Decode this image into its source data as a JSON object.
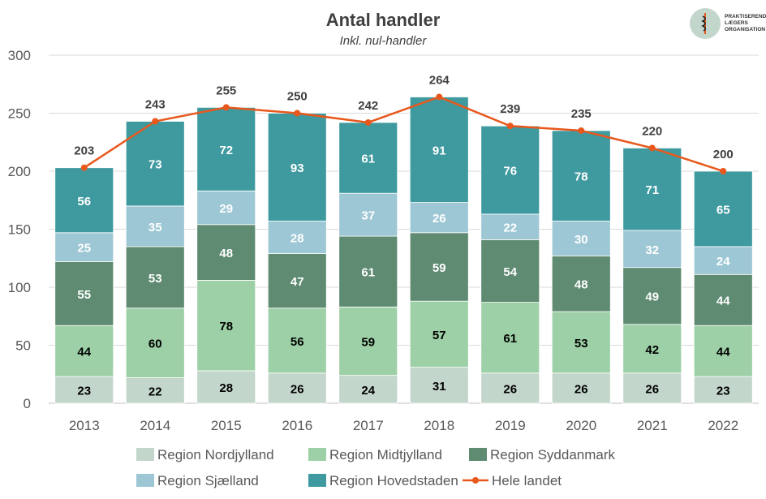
{
  "chart_data": {
    "type": "stacked-bar+line",
    "title": "Antal handler",
    "subtitle": "Inkl. nul-handler",
    "categories": [
      "2013",
      "2014",
      "2015",
      "2016",
      "2017",
      "2018",
      "2019",
      "2020",
      "2021",
      "2022"
    ],
    "ylim": [
      0,
      300
    ],
    "yticks": [
      0,
      50,
      100,
      150,
      200,
      250,
      300
    ],
    "grid": true,
    "legend_position": "bottom",
    "series": [
      {
        "name": "Region Nordjylland",
        "type": "bar",
        "color": "#c3d6cb",
        "label_color": "#000000",
        "values": [
          23,
          22,
          28,
          26,
          24,
          31,
          26,
          26,
          26,
          23
        ]
      },
      {
        "name": "Region Midtjylland",
        "type": "bar",
        "color": "#9dd0a6",
        "label_color": "#000000",
        "values": [
          44,
          60,
          78,
          56,
          59,
          57,
          61,
          53,
          42,
          44
        ]
      },
      {
        "name": "Region Syddanmark",
        "type": "bar",
        "color": "#5e8b72",
        "label_color": "#ffffff",
        "values": [
          55,
          53,
          48,
          47,
          61,
          59,
          54,
          48,
          49,
          44
        ]
      },
      {
        "name": "Region Sjælland",
        "type": "bar",
        "color": "#9dc7d4",
        "label_color": "#ffffff",
        "values": [
          25,
          35,
          29,
          28,
          37,
          26,
          22,
          30,
          32,
          24
        ]
      },
      {
        "name": "Region Hovedstaden",
        "type": "bar",
        "color": "#3f9aa0",
        "label_color": "#ffffff",
        "values": [
          56,
          73,
          72,
          93,
          61,
          91,
          76,
          78,
          71,
          65
        ]
      },
      {
        "name": "Hele landet",
        "type": "line",
        "color": "#e8581c",
        "values": [
          203,
          243,
          255,
          250,
          242,
          264,
          239,
          235,
          220,
          200
        ]
      }
    ]
  },
  "logo": {
    "text": [
      "PRAKTISERENDE",
      "LÆGERS",
      "ORGANISATION"
    ]
  }
}
